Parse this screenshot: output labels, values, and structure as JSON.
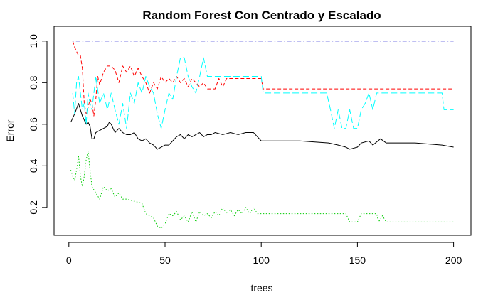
{
  "chart_data": {
    "type": "line",
    "title": "Random Forest Con Centrado y Escalado",
    "xlabel": "trees",
    "ylabel": "Error",
    "xlim": [
      0,
      200
    ],
    "ylim": [
      0.07,
      1.07
    ],
    "xticks": [
      0,
      50,
      100,
      150,
      200
    ],
    "yticks": [
      0.2,
      0.4,
      0.6,
      0.8,
      1.0
    ],
    "ytick_labels": [
      "0.2",
      "0.4",
      "0.6",
      "0.8",
      "1.0"
    ],
    "grid": false,
    "legend": "none",
    "series": [
      {
        "color": "#000000",
        "dash": "solid",
        "points": [
          [
            1,
            0.61
          ],
          [
            3,
            0.65
          ],
          [
            5,
            0.7
          ],
          [
            6,
            0.67
          ],
          [
            7,
            0.64
          ],
          [
            8,
            0.62
          ],
          [
            9,
            0.6
          ],
          [
            10,
            0.61
          ],
          [
            11,
            0.59
          ],
          [
            12,
            0.53
          ],
          [
            13,
            0.53
          ],
          [
            14,
            0.56
          ],
          [
            16,
            0.57
          ],
          [
            18,
            0.58
          ],
          [
            20,
            0.59
          ],
          [
            21,
            0.61
          ],
          [
            22,
            0.6
          ],
          [
            24,
            0.56
          ],
          [
            26,
            0.58
          ],
          [
            28,
            0.56
          ],
          [
            30,
            0.55
          ],
          [
            32,
            0.55
          ],
          [
            34,
            0.56
          ],
          [
            36,
            0.53
          ],
          [
            38,
            0.52
          ],
          [
            40,
            0.53
          ],
          [
            42,
            0.51
          ],
          [
            44,
            0.5
          ],
          [
            46,
            0.48
          ],
          [
            48,
            0.49
          ],
          [
            50,
            0.5
          ],
          [
            52,
            0.5
          ],
          [
            54,
            0.52
          ],
          [
            56,
            0.54
          ],
          [
            58,
            0.55
          ],
          [
            60,
            0.53
          ],
          [
            62,
            0.55
          ],
          [
            64,
            0.54
          ],
          [
            66,
            0.55
          ],
          [
            68,
            0.56
          ],
          [
            70,
            0.54
          ],
          [
            72,
            0.55
          ],
          [
            74,
            0.55
          ],
          [
            76,
            0.56
          ],
          [
            80,
            0.55
          ],
          [
            84,
            0.56
          ],
          [
            88,
            0.55
          ],
          [
            92,
            0.56
          ],
          [
            96,
            0.56
          ],
          [
            100,
            0.52
          ],
          [
            120,
            0.52
          ],
          [
            135,
            0.51
          ],
          [
            140,
            0.5
          ],
          [
            144,
            0.49
          ],
          [
            146,
            0.48
          ],
          [
            150,
            0.49
          ],
          [
            152,
            0.51
          ],
          [
            156,
            0.52
          ],
          [
            158,
            0.5
          ],
          [
            162,
            0.53
          ],
          [
            165,
            0.51
          ],
          [
            170,
            0.51
          ],
          [
            180,
            0.51
          ],
          [
            194,
            0.5
          ],
          [
            200,
            0.49
          ]
        ]
      },
      {
        "color": "#00cc00",
        "dash": "dot",
        "points": [
          [
            1,
            0.38
          ],
          [
            2,
            0.35
          ],
          [
            3,
            0.33
          ],
          [
            4,
            0.38
          ],
          [
            5,
            0.45
          ],
          [
            6,
            0.35
          ],
          [
            7,
            0.3
          ],
          [
            8,
            0.35
          ],
          [
            9,
            0.43
          ],
          [
            10,
            0.47
          ],
          [
            11,
            0.38
          ],
          [
            12,
            0.3
          ],
          [
            14,
            0.27
          ],
          [
            16,
            0.24
          ],
          [
            18,
            0.3
          ],
          [
            20,
            0.28
          ],
          [
            22,
            0.29
          ],
          [
            24,
            0.25
          ],
          [
            26,
            0.27
          ],
          [
            28,
            0.24
          ],
          [
            30,
            0.24
          ],
          [
            34,
            0.23
          ],
          [
            38,
            0.22
          ],
          [
            40,
            0.17
          ],
          [
            42,
            0.16
          ],
          [
            44,
            0.15
          ],
          [
            46,
            0.11
          ],
          [
            48,
            0.1
          ],
          [
            50,
            0.12
          ],
          [
            52,
            0.17
          ],
          [
            54,
            0.16
          ],
          [
            56,
            0.18
          ],
          [
            58,
            0.14
          ],
          [
            60,
            0.16
          ],
          [
            62,
            0.13
          ],
          [
            64,
            0.18
          ],
          [
            66,
            0.13
          ],
          [
            68,
            0.18
          ],
          [
            70,
            0.16
          ],
          [
            72,
            0.17
          ],
          [
            74,
            0.15
          ],
          [
            76,
            0.18
          ],
          [
            78,
            0.16
          ],
          [
            80,
            0.2
          ],
          [
            82,
            0.17
          ],
          [
            84,
            0.19
          ],
          [
            86,
            0.16
          ],
          [
            88,
            0.19
          ],
          [
            90,
            0.17
          ],
          [
            92,
            0.2
          ],
          [
            94,
            0.17
          ],
          [
            96,
            0.2
          ],
          [
            98,
            0.17
          ],
          [
            100,
            0.17
          ],
          [
            144,
            0.17
          ],
          [
            146,
            0.13
          ],
          [
            150,
            0.13
          ],
          [
            152,
            0.17
          ],
          [
            160,
            0.17
          ],
          [
            161,
            0.13
          ],
          [
            163,
            0.16
          ],
          [
            165,
            0.13
          ],
          [
            200,
            0.13
          ]
        ]
      },
      {
        "color": "#ff0000",
        "dash": "dash",
        "points": [
          [
            2,
            1.0
          ],
          [
            3,
            0.97
          ],
          [
            5,
            0.93
          ],
          [
            6,
            0.93
          ],
          [
            7,
            0.87
          ],
          [
            8,
            0.7
          ],
          [
            9,
            0.65
          ],
          [
            10,
            0.68
          ],
          [
            11,
            0.72
          ],
          [
            12,
            0.7
          ],
          [
            13,
            0.64
          ],
          [
            14,
            0.72
          ],
          [
            15,
            0.83
          ],
          [
            16,
            0.79
          ],
          [
            18,
            0.85
          ],
          [
            20,
            0.88
          ],
          [
            22,
            0.88
          ],
          [
            24,
            0.86
          ],
          [
            26,
            0.8
          ],
          [
            28,
            0.88
          ],
          [
            30,
            0.85
          ],
          [
            32,
            0.88
          ],
          [
            34,
            0.83
          ],
          [
            36,
            0.87
          ],
          [
            38,
            0.83
          ],
          [
            40,
            0.8
          ],
          [
            42,
            0.75
          ],
          [
            44,
            0.8
          ],
          [
            46,
            0.77
          ],
          [
            48,
            0.83
          ],
          [
            50,
            0.8
          ],
          [
            52,
            0.82
          ],
          [
            54,
            0.8
          ],
          [
            56,
            0.83
          ],
          [
            58,
            0.8
          ],
          [
            60,
            0.82
          ],
          [
            62,
            0.78
          ],
          [
            64,
            0.82
          ],
          [
            66,
            0.8
          ],
          [
            68,
            0.78
          ],
          [
            70,
            0.8
          ],
          [
            72,
            0.77
          ],
          [
            76,
            0.77
          ],
          [
            78,
            0.82
          ],
          [
            80,
            0.78
          ],
          [
            82,
            0.82
          ],
          [
            90,
            0.82
          ],
          [
            100,
            0.82
          ],
          [
            101,
            0.77
          ],
          [
            200,
            0.77
          ]
        ]
      },
      {
        "color": "#00ffff",
        "dash": "longdash",
        "points": [
          [
            2,
            0.75
          ],
          [
            3,
            0.65
          ],
          [
            4,
            0.8
          ],
          [
            5,
            0.83
          ],
          [
            6,
            0.75
          ],
          [
            7,
            0.67
          ],
          [
            8,
            0.7
          ],
          [
            9,
            0.6
          ],
          [
            10,
            0.75
          ],
          [
            11,
            0.7
          ],
          [
            12,
            0.67
          ],
          [
            13,
            0.75
          ],
          [
            14,
            0.83
          ],
          [
            16,
            0.7
          ],
          [
            18,
            0.75
          ],
          [
            20,
            0.67
          ],
          [
            22,
            0.75
          ],
          [
            24,
            0.67
          ],
          [
            26,
            0.6
          ],
          [
            28,
            0.7
          ],
          [
            30,
            0.58
          ],
          [
            32,
            0.75
          ],
          [
            34,
            0.7
          ],
          [
            36,
            0.8
          ],
          [
            38,
            0.75
          ],
          [
            40,
            0.83
          ],
          [
            42,
            0.78
          ],
          [
            44,
            0.75
          ],
          [
            46,
            0.65
          ],
          [
            48,
            0.58
          ],
          [
            50,
            0.67
          ],
          [
            52,
            0.75
          ],
          [
            54,
            0.72
          ],
          [
            56,
            0.83
          ],
          [
            58,
            0.92
          ],
          [
            60,
            0.92
          ],
          [
            62,
            0.83
          ],
          [
            64,
            0.78
          ],
          [
            66,
            0.75
          ],
          [
            68,
            0.83
          ],
          [
            70,
            0.92
          ],
          [
            72,
            0.83
          ],
          [
            76,
            0.83
          ],
          [
            80,
            0.83
          ],
          [
            90,
            0.83
          ],
          [
            100,
            0.83
          ],
          [
            101,
            0.75
          ],
          [
            134,
            0.75
          ],
          [
            136,
            0.67
          ],
          [
            138,
            0.58
          ],
          [
            140,
            0.67
          ],
          [
            142,
            0.58
          ],
          [
            144,
            0.58
          ],
          [
            146,
            0.67
          ],
          [
            148,
            0.58
          ],
          [
            150,
            0.58
          ],
          [
            152,
            0.67
          ],
          [
            154,
            0.7
          ],
          [
            156,
            0.75
          ],
          [
            158,
            0.67
          ],
          [
            160,
            0.75
          ],
          [
            162,
            0.75
          ],
          [
            194,
            0.75
          ],
          [
            195,
            0.67
          ],
          [
            200,
            0.67
          ]
        ]
      },
      {
        "color": "#0000cc",
        "dash": "dotdash",
        "points": [
          [
            2,
            1.0
          ],
          [
            200,
            1.0
          ]
        ]
      }
    ]
  }
}
